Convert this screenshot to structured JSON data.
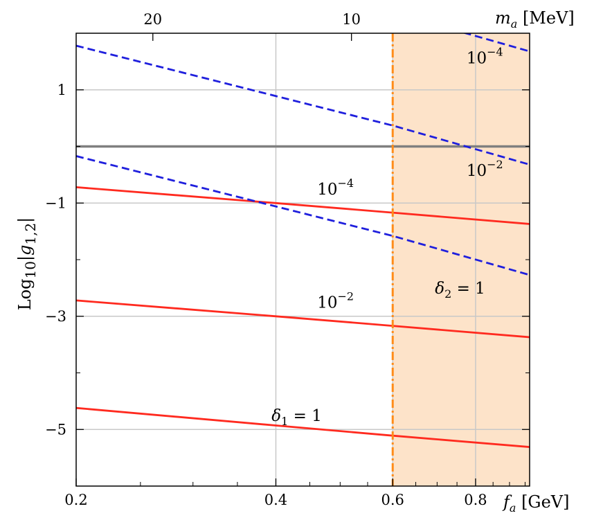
{
  "chart_data": {
    "type": "line",
    "x_scale": "log",
    "xlim": [
      0.2,
      0.965
    ],
    "ylim": [
      -6,
      2
    ],
    "grid": true,
    "xlabel": "f",
    "xlabel_sub": "a",
    "xlabel_unit": "[GeV]",
    "ylabel": "Log",
    "ylabel_sub": "10",
    "ylabel_rest": "|g",
    "ylabel_sub2": "1,2",
    "ylabel_end": "|",
    "top_axis_label": "m",
    "top_axis_label_sub": "a",
    "top_axis_unit": "[MeV]",
    "x_ticks": [
      {
        "value": 0.2,
        "label": "0.2"
      },
      {
        "value": 0.4,
        "label": "0.4"
      },
      {
        "value": 0.6,
        "label": "0.6"
      },
      {
        "value": 0.8,
        "label": "0.8"
      }
    ],
    "x_minor_ticks": [
      0.25,
      0.3,
      0.35,
      0.45,
      0.5,
      0.55,
      0.65,
      0.7,
      0.75,
      0.85,
      0.9,
      0.95
    ],
    "y_ticks": [
      {
        "value": 1,
        "label": "1"
      },
      {
        "value": -1,
        "label": "−1"
      },
      {
        "value": -3,
        "label": "−3"
      },
      {
        "value": -5,
        "label": "−5"
      }
    ],
    "y_minor_ticks": [
      2,
      0,
      -2,
      -4,
      -6
    ],
    "top_ticks": [
      {
        "x": 0.261,
        "label": "20"
      },
      {
        "x": 0.52,
        "label": "10"
      }
    ],
    "reference_line": {
      "y": 0,
      "color": "#7f7f7f"
    },
    "vertical_line": {
      "x": 0.6,
      "color": "#ff8c1a"
    },
    "shaded_region": {
      "x_from": 0.6,
      "x_to": 0.965,
      "color": "#fde3c9"
    },
    "series": [
      {
        "group": "delta1",
        "style": "solid",
        "color": "#ff2a1f",
        "x": [
          0.2,
          0.4,
          0.6,
          0.965
        ],
        "y": [
          -4.62,
          -4.93,
          -5.11,
          -5.31
        ]
      },
      {
        "group": "delta1",
        "style": "solid",
        "color": "#ff2a1f",
        "x": [
          0.2,
          0.4,
          0.6,
          0.965
        ],
        "y": [
          -2.72,
          -3.0,
          -3.17,
          -3.37
        ]
      },
      {
        "group": "delta1",
        "style": "solid",
        "color": "#ff2a1f",
        "x": [
          0.2,
          0.4,
          0.6,
          0.965
        ],
        "y": [
          -0.72,
          -1.0,
          -1.17,
          -1.37
        ]
      },
      {
        "group": "delta2",
        "style": "dashed",
        "color": "#1f1fdd",
        "x": [
          0.2,
          0.6,
          0.965
        ],
        "y": [
          -0.17,
          -1.58,
          -2.27
        ]
      },
      {
        "group": "delta2",
        "style": "dashed",
        "color": "#1f1fdd",
        "x": [
          0.2,
          0.6,
          0.965
        ],
        "y": [
          1.78,
          0.37,
          -0.32
        ]
      },
      {
        "group": "delta2",
        "style": "dashed",
        "color": "#1f1fdd",
        "x": [
          0.2,
          0.6,
          0.965
        ],
        "y": [
          3.78,
          2.37,
          1.68
        ]
      }
    ],
    "annotations": [
      {
        "id": "d1-1",
        "type": "delta",
        "sym": "δ",
        "sub": "1",
        "rest": " = 1",
        "x": 0.43,
        "y": -4.85
      },
      {
        "id": "d1-2",
        "type": "power",
        "base": "10",
        "exp": "−2",
        "x": 0.492,
        "y": -2.85
      },
      {
        "id": "d1-4",
        "type": "power",
        "base": "10",
        "exp": "−4",
        "x": 0.492,
        "y": -0.85
      },
      {
        "id": "d2-1",
        "type": "delta",
        "sym": "δ",
        "sub": "2",
        "rest": " = 1",
        "x": 0.758,
        "y": -2.6
      },
      {
        "id": "d2-2",
        "type": "power",
        "base": "10",
        "exp": "−2",
        "x": 0.826,
        "y": -0.52
      },
      {
        "id": "d2-4",
        "type": "power",
        "base": "10",
        "exp": "−4",
        "x": 0.826,
        "y": 1.47
      }
    ]
  }
}
